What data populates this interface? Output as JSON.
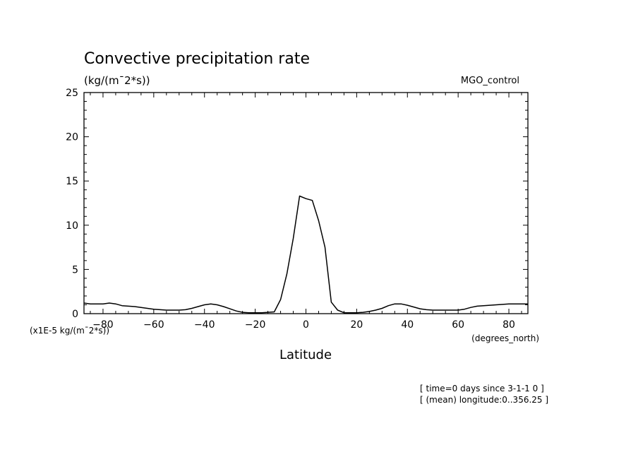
{
  "chart_data": {
    "type": "line",
    "title": "Convective precipitation rate",
    "units_label": "(kg/(m¯2*s))",
    "experiment": "MGO_control",
    "multiplier_note": "(x1E-5 kg/(m¯2*s))",
    "xlabel": "Latitude",
    "xunits": "(degrees_north)",
    "xlim": [
      -87.5,
      87.5
    ],
    "ylim": [
      0,
      25
    ],
    "x_ticks": [
      -80,
      -60,
      -40,
      -20,
      0,
      20,
      40,
      60,
      80
    ],
    "x_tick_labels": [
      "−80",
      "−60",
      "−40",
      "−20",
      "0",
      "20",
      "40",
      "60",
      "80"
    ],
    "y_ticks": [
      0,
      5,
      10,
      15,
      20,
      25
    ],
    "y_tick_labels": [
      "0",
      "5",
      "10",
      "15",
      "20",
      "25"
    ],
    "grid": false,
    "series": [
      {
        "x": [
          -87.5,
          -85,
          -82.5,
          -80,
          -77.5,
          -75,
          -72.5,
          -70,
          -67.5,
          -65,
          -62.5,
          -60,
          -57.5,
          -55,
          -52.5,
          -50,
          -47.5,
          -45,
          -42.5,
          -40,
          -37.5,
          -35,
          -32.5,
          -30,
          -27.5,
          -25,
          -22.5,
          -20,
          -17.5,
          -15,
          -12.5,
          -10,
          -7.5,
          -5,
          -2.5,
          0,
          2.5,
          5,
          7.5,
          10,
          12.5,
          15,
          17.5,
          20,
          22.5,
          25,
          27.5,
          30,
          32.5,
          35,
          37.5,
          40,
          42.5,
          45,
          47.5,
          50,
          52.5,
          55,
          57.5,
          60,
          62.5,
          65,
          67.5,
          70,
          72.5,
          75,
          77.5,
          80,
          82.5,
          85,
          87.5
        ],
        "y": [
          1.2,
          1.1,
          1.1,
          1.1,
          1.2,
          1.1,
          0.9,
          0.85,
          0.8,
          0.7,
          0.6,
          0.5,
          0.45,
          0.4,
          0.4,
          0.4,
          0.45,
          0.6,
          0.8,
          1.0,
          1.1,
          1.0,
          0.8,
          0.55,
          0.3,
          0.15,
          0.1,
          0.1,
          0.1,
          0.15,
          0.2,
          1.6,
          4.5,
          8.5,
          13.3,
          13.0,
          12.8,
          10.5,
          7.5,
          1.3,
          0.4,
          0.1,
          0.1,
          0.1,
          0.15,
          0.25,
          0.4,
          0.6,
          0.9,
          1.1,
          1.1,
          0.95,
          0.75,
          0.55,
          0.45,
          0.4,
          0.4,
          0.4,
          0.4,
          0.4,
          0.5,
          0.7,
          0.85,
          0.9,
          0.95,
          1.0,
          1.05,
          1.1,
          1.1,
          1.1,
          1.1
        ]
      }
    ],
    "annotations": [
      "[ time=0 days since 3-1-1 0 ]",
      "[ (mean) longitude:0..356.25 ]"
    ]
  }
}
